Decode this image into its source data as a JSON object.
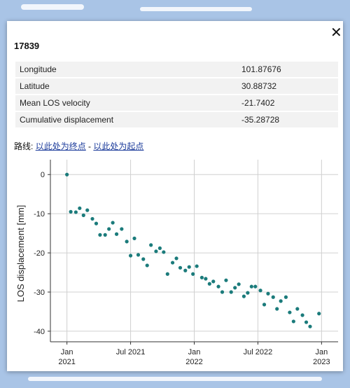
{
  "popup": {
    "title": "17839",
    "table": {
      "rows": [
        [
          "Longitude",
          "101.87676"
        ],
        [
          "Latitude",
          "30.88732"
        ],
        [
          "Mean LOS velocity",
          "-21.7402"
        ],
        [
          "Cumulative displacement",
          "-35.28728"
        ]
      ]
    },
    "route": {
      "label": "路线:",
      "link_end": "以此处为终点",
      "separator": "-",
      "link_start": "以此处为起点"
    }
  },
  "chart_data": {
    "type": "scatter",
    "ylabel": "LOS displacement [mm]",
    "color": "#1b7b7b",
    "grid": true,
    "xlim": [
      2020.87,
      2023.13
    ],
    "ylim": [
      -42.7,
      3.8
    ],
    "xticks": [
      {
        "value": 2021.0,
        "label": "Jan\n2021"
      },
      {
        "value": 2021.5,
        "label": "Jul 2021"
      },
      {
        "value": 2022.0,
        "label": "Jan\n2022"
      },
      {
        "value": 2022.5,
        "label": "Jul 2022"
      },
      {
        "value": 2023.0,
        "label": "Jan\n2023"
      }
    ],
    "yticks": [
      0,
      -10,
      -20,
      -30,
      -40
    ],
    "x": [
      2021.0,
      2021.03,
      2021.07,
      2021.1,
      2021.13,
      2021.16,
      2021.2,
      2021.23,
      2021.26,
      2021.3,
      2021.33,
      2021.36,
      2021.39,
      2021.43,
      2021.47,
      2021.5,
      2021.53,
      2021.56,
      2021.6,
      2021.63,
      2021.66,
      2021.7,
      2021.73,
      2021.76,
      2021.79,
      2021.83,
      2021.86,
      2021.89,
      2021.93,
      2021.96,
      2021.99,
      2022.02,
      2022.06,
      2022.09,
      2022.12,
      2022.15,
      2022.19,
      2022.22,
      2022.25,
      2022.29,
      2022.32,
      2022.35,
      2022.39,
      2022.42,
      2022.45,
      2022.48,
      2022.52,
      2022.55,
      2022.58,
      2022.62,
      2022.65,
      2022.68,
      2022.72,
      2022.75,
      2022.78,
      2022.81,
      2022.85,
      2022.88,
      2022.91,
      2022.98
    ],
    "values": [
      0,
      -9.5,
      -9.6,
      -8.6,
      -10.4,
      -9.1,
      -11.3,
      -12.5,
      -15.4,
      -15.4,
      -13.9,
      -12.3,
      -15.2,
      -13.9,
      -17.1,
      -20.7,
      -16.3,
      -20.5,
      -21.6,
      -23.2,
      -18.0,
      -19.6,
      -18.8,
      -19.8,
      -25.4,
      -22.5,
      -21.4,
      -23.8,
      -24.5,
      -23.6,
      -25.4,
      -23.4,
      -26.3,
      -26.6,
      -27.9,
      -27.3,
      -28.6,
      -30.0,
      -27.0,
      -30.0,
      -28.9,
      -28.0,
      -31.1,
      -30.2,
      -28.6,
      -28.6,
      -29.6,
      -33.2,
      -30.4,
      -31.3,
      -34.3,
      -32.3,
      -31.3,
      -35.2,
      -37.5,
      -34.3,
      -35.9,
      -37.7,
      -38.8,
      -35.5
    ]
  }
}
